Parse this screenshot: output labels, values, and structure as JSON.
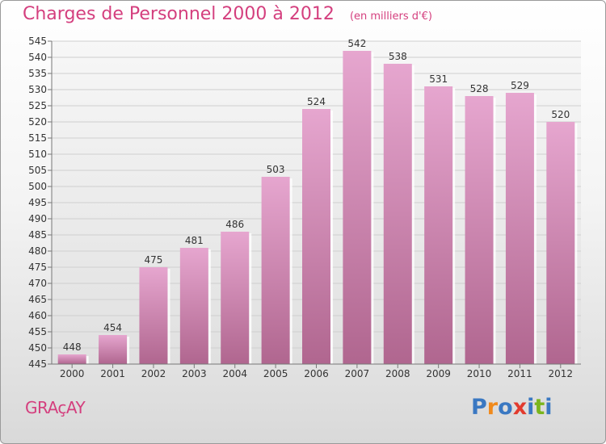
{
  "chart": {
    "title": "Charges de Personnel 2000 à 2012",
    "unit": "(en milliers d'€)"
  },
  "footer": {
    "commune": "GRAçAY",
    "logo_text": "Proxiti",
    "logo_letters": [
      "P",
      "r",
      "o",
      "x",
      "i",
      "t",
      "i"
    ],
    "logo_colors": [
      "#3a78c2",
      "#f08a1c",
      "#3a78c2",
      "#e23b2e",
      "#3a78c2",
      "#7ab51d",
      "#3a78c2"
    ]
  },
  "colors": {
    "title": "#d43f7e",
    "bar_light": "#e6a6cf",
    "bar_dark": "#b0668f"
  },
  "chart_data": {
    "type": "bar",
    "title": "Charges de Personnel 2000 à 2012",
    "subtitle": "(en milliers d'€)",
    "categories": [
      "2000",
      "2001",
      "2002",
      "2003",
      "2004",
      "2005",
      "2006",
      "2007",
      "2008",
      "2009",
      "2010",
      "2011",
      "2012"
    ],
    "values": [
      448,
      454,
      475,
      481,
      486,
      503,
      524,
      542,
      538,
      531,
      528,
      529,
      520
    ],
    "ylim": [
      445,
      545
    ],
    "yticks": [
      445,
      450,
      455,
      460,
      465,
      470,
      475,
      480,
      485,
      490,
      495,
      500,
      505,
      510,
      515,
      520,
      525,
      530,
      535,
      540,
      545
    ],
    "grid": true,
    "xlabel": "",
    "ylabel": ""
  }
}
